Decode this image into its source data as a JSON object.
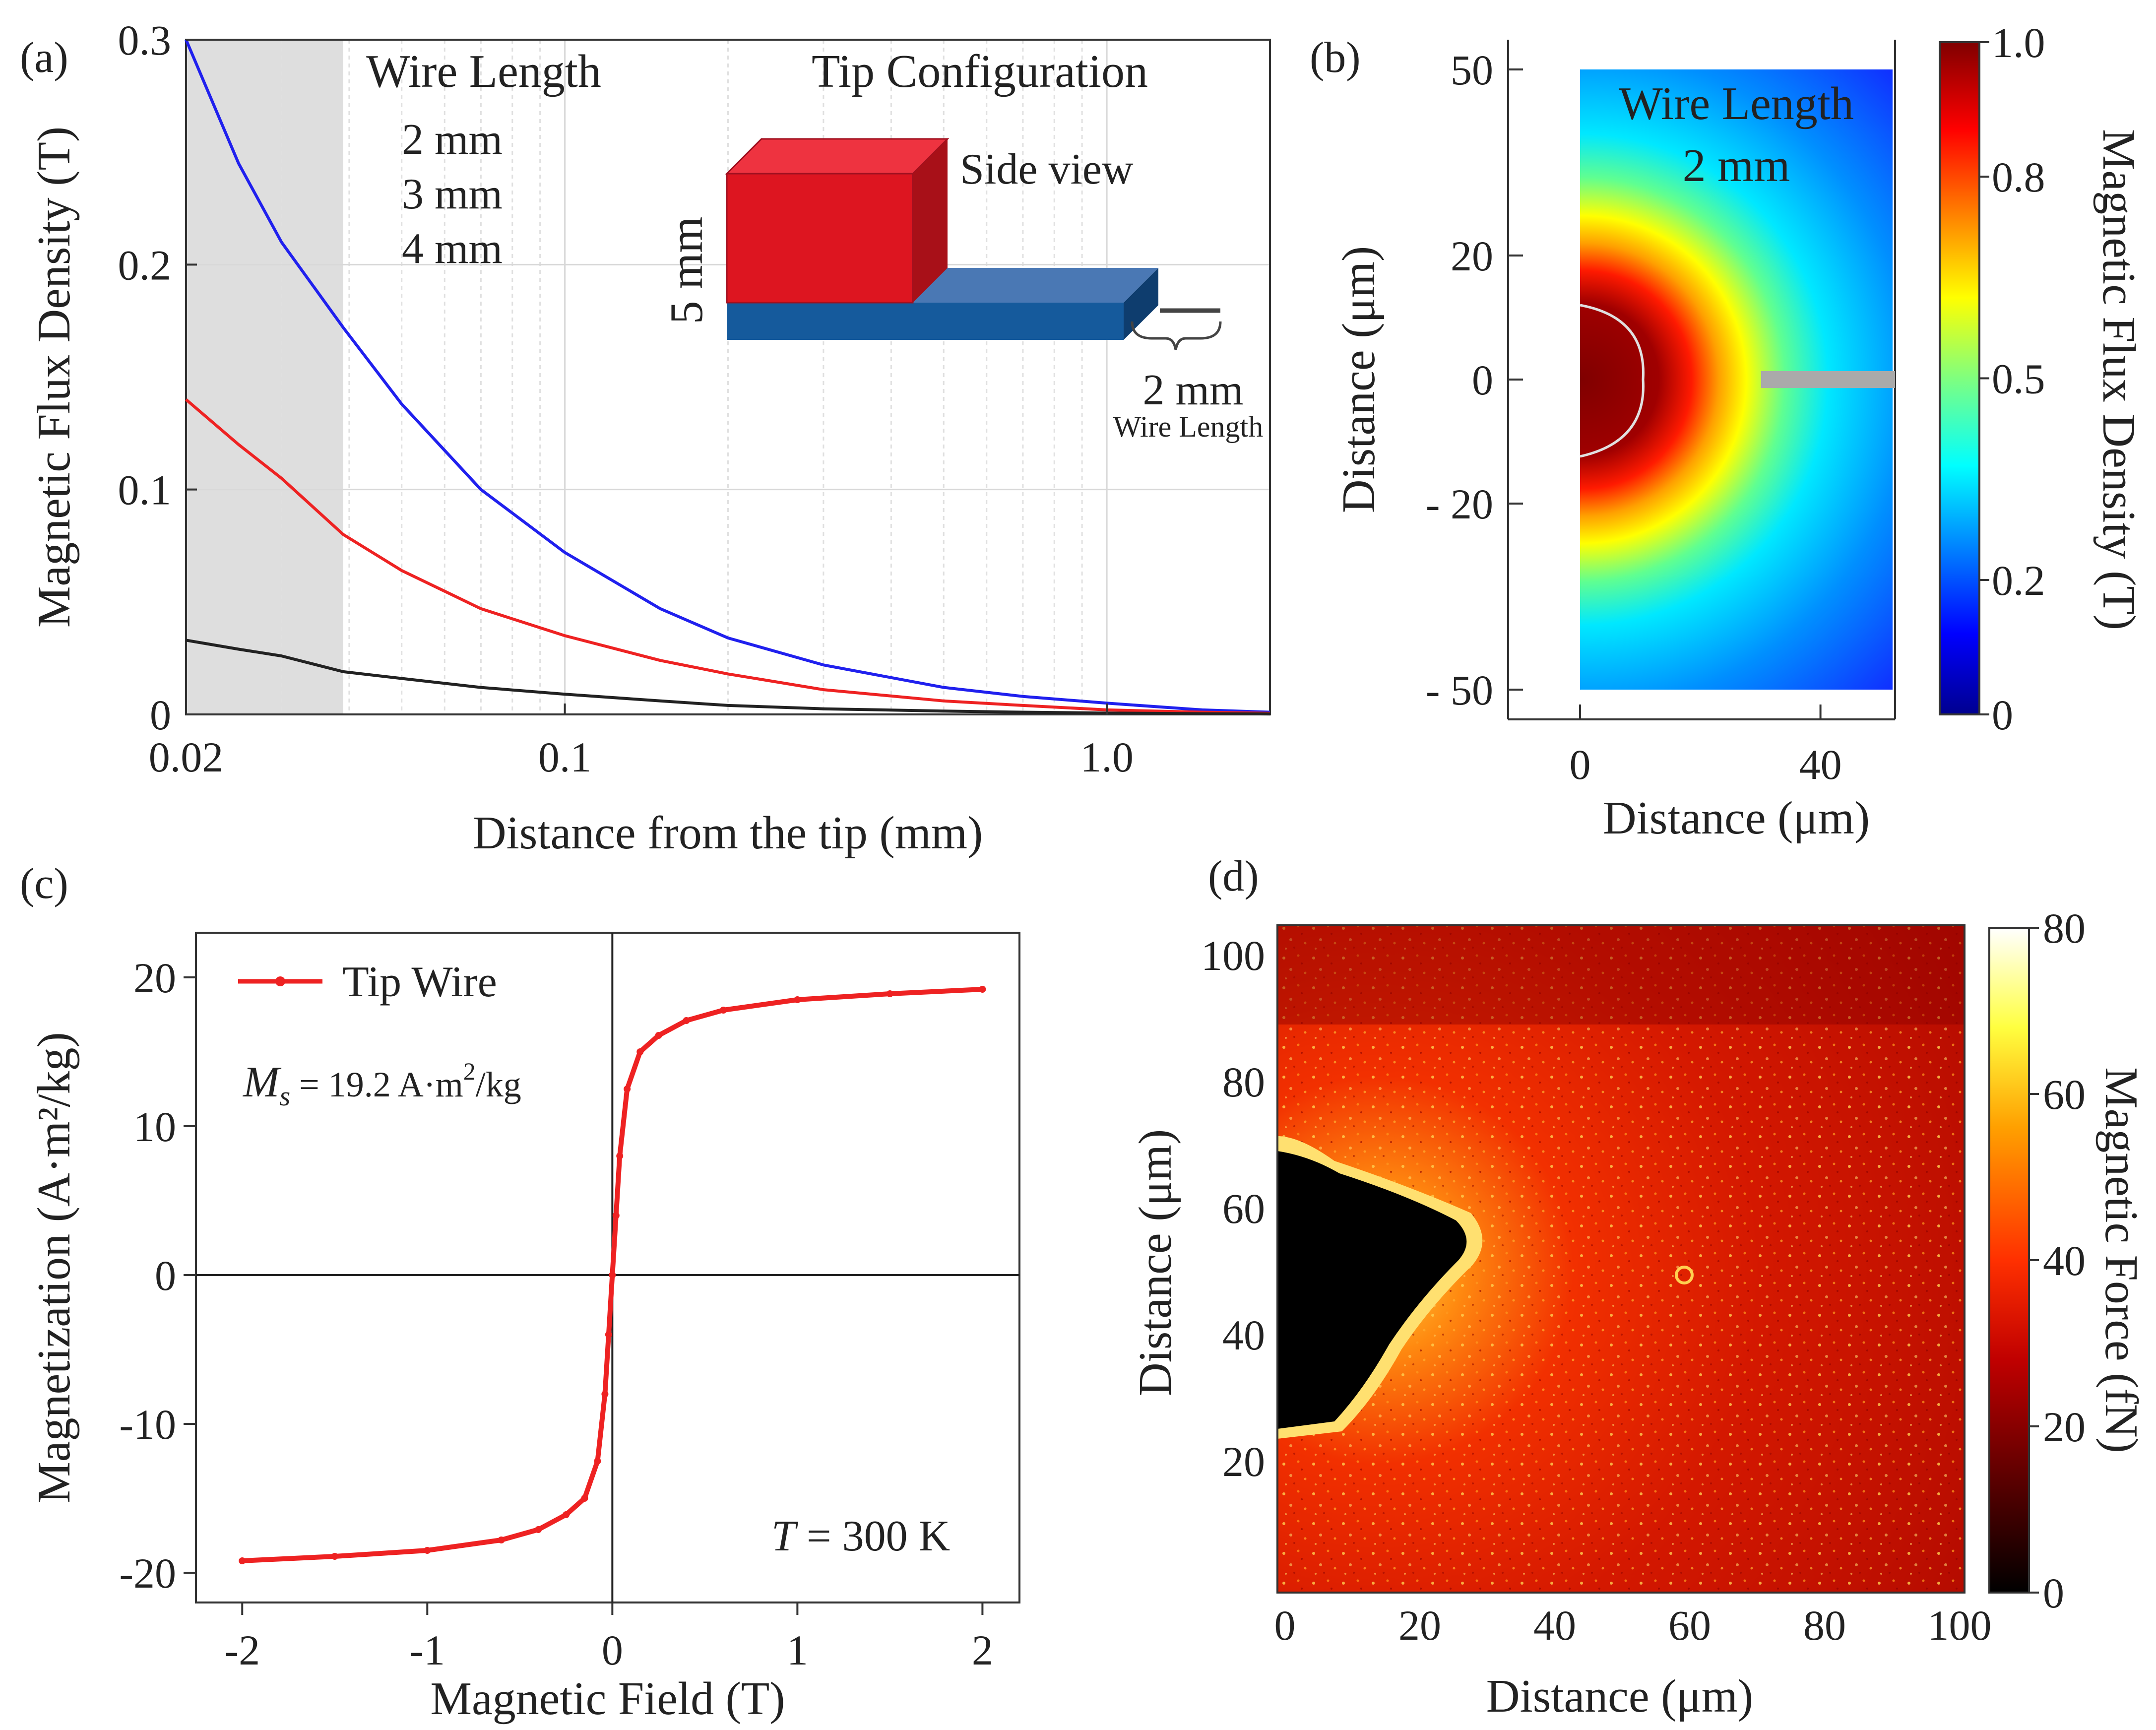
{
  "colors": {
    "blue": "#2020ee",
    "red": "#ee2222",
    "black": "#222222",
    "darkred": "#990000",
    "grey_band": "#dedede",
    "gray_label": "#555555"
  },
  "chart_data": [
    {
      "id": "a",
      "panel_label": "(a)",
      "type": "line",
      "xscale": "log",
      "xlabel": "Distance from the tip (mm)",
      "ylabel": "Magnetic Flux Density (T)",
      "xlim": [
        0.02,
        2.0
      ],
      "ylim": [
        0,
        0.3
      ],
      "xticks": [
        {
          "v": 0.02,
          "label": "0.02"
        },
        {
          "v": 0.1,
          "label": "0.1"
        },
        {
          "v": 1.0,
          "label": "1.0"
        }
      ],
      "yticks": [
        {
          "v": 0,
          "label": "0"
        },
        {
          "v": 0.1,
          "label": "0.1"
        },
        {
          "v": 0.2,
          "label": "0.2"
        },
        {
          "v": 0.3,
          "label": "0.3"
        }
      ],
      "shaded_xrange": [
        0.02,
        0.039
      ],
      "legend_title": "Wire Length",
      "series": [
        {
          "name": "2 mm",
          "color": "#2020ee",
          "x": [
            0.02,
            0.025,
            0.03,
            0.039,
            0.05,
            0.07,
            0.1,
            0.15,
            0.2,
            0.3,
            0.5,
            0.7,
            1.0,
            1.5,
            2.0
          ],
          "y": [
            0.3,
            0.245,
            0.21,
            0.172,
            0.138,
            0.1,
            0.072,
            0.047,
            0.034,
            0.022,
            0.012,
            0.008,
            0.005,
            0.002,
            0.001
          ]
        },
        {
          "name": "3 mm",
          "color": "#ee2222",
          "x": [
            0.02,
            0.025,
            0.03,
            0.039,
            0.05,
            0.07,
            0.1,
            0.15,
            0.2,
            0.3,
            0.5,
            0.7,
            1.0,
            1.5,
            2.0
          ],
          "y": [
            0.14,
            0.12,
            0.105,
            0.08,
            0.064,
            0.047,
            0.035,
            0.024,
            0.018,
            0.011,
            0.006,
            0.004,
            0.002,
            0.001,
            0.0005
          ]
        },
        {
          "name": "4 mm",
          "color": "#222222",
          "x": [
            0.02,
            0.025,
            0.03,
            0.039,
            0.05,
            0.07,
            0.1,
            0.15,
            0.2,
            0.3,
            0.5,
            0.7,
            1.0,
            1.5,
            2.0
          ],
          "y": [
            0.033,
            0.029,
            0.026,
            0.019,
            0.016,
            0.012,
            0.009,
            0.006,
            0.004,
            0.0025,
            0.0015,
            0.001,
            0.0006,
            0.0003,
            0.0002
          ]
        }
      ],
      "inset": {
        "title": "Tip Configuration",
        "side_view": "Side view",
        "height_label": "5 mm",
        "wire_value": "2 mm",
        "wire_caption": "Wire Length"
      }
    },
    {
      "id": "b",
      "panel_label": "(b)",
      "type": "heatmap",
      "xlabel": "Distance (μm)",
      "ylabel": "Distance (μm)",
      "xticks": [
        {
          "v": 0,
          "label": "0"
        },
        {
          "v": 40,
          "label": "40"
        }
      ],
      "yticks": [
        {
          "v": 50,
          "label": "50"
        },
        {
          "v": 20,
          "label": "20"
        },
        {
          "v": 0,
          "label": "0"
        },
        {
          "v": -20,
          "label": "- 20"
        },
        {
          "v": -50,
          "label": "- 50"
        }
      ],
      "annotation": [
        "Wire Length",
        "2 mm"
      ],
      "colorbar": {
        "label": "Magnetic Flux Density  (T)",
        "ticks": [
          {
            "v": 1.0,
            "label": "1.0"
          },
          {
            "v": 0.8,
            "label": "0.8"
          },
          {
            "v": 0.5,
            "label": "0.5"
          },
          {
            "v": 0.2,
            "label": "0.2"
          },
          {
            "v": 0,
            "label": "0"
          }
        ],
        "label_color": "#2020ee"
      }
    },
    {
      "id": "c",
      "panel_label": "(c)",
      "type": "line",
      "xlabel": "Magnetic Field (T)",
      "ylabel": "Magnetization (A·m²/kg)",
      "xlim": [
        -2.25,
        2.2
      ],
      "ylim": [
        -22,
        23
      ],
      "xticks": [
        {
          "v": -2,
          "label": "-2"
        },
        {
          "v": -1,
          "label": "-1"
        },
        {
          "v": 0,
          "label": "0"
        },
        {
          "v": 1,
          "label": "1"
        },
        {
          "v": 2,
          "label": "2"
        }
      ],
      "yticks": [
        {
          "v": 20,
          "label": "20"
        },
        {
          "v": 10,
          "label": "10"
        },
        {
          "v": 0,
          "label": "0"
        },
        {
          "v": -10,
          "label": "-10"
        },
        {
          "v": -20,
          "label": "-20"
        }
      ],
      "series": [
        {
          "name": "Tip Wire",
          "color": "#ee2222",
          "x": [
            -2.0,
            -1.5,
            -1.0,
            -0.6,
            -0.4,
            -0.25,
            -0.15,
            -0.08,
            -0.04,
            -0.02,
            0.0,
            0.02,
            0.04,
            0.08,
            0.15,
            0.25,
            0.4,
            0.6,
            1.0,
            1.5,
            2.0
          ],
          "y": [
            -19.2,
            -18.9,
            -18.5,
            -17.8,
            -17.1,
            -16.1,
            -15.0,
            -12.5,
            -8.0,
            -4.0,
            0.0,
            4.0,
            8.0,
            12.5,
            15.0,
            16.1,
            17.1,
            17.8,
            18.5,
            18.9,
            19.2
          ]
        }
      ],
      "annotations": {
        "ms_sym": "M",
        "ms_sub": "s",
        "ms_value": " = 19.2 A·m",
        "ms_sup": "2",
        "ms_unit": "/kg",
        "temp_sym": "T",
        "temp_value": " = 300 K"
      }
    },
    {
      "id": "d",
      "panel_label": "(d)",
      "type": "heatmap",
      "xlabel": "Distance (μm)",
      "ylabel": "Distance (μm)",
      "xticks": [
        {
          "v": 0,
          "label": "0"
        },
        {
          "v": 20,
          "label": "20"
        },
        {
          "v": 40,
          "label": "40"
        },
        {
          "v": 60,
          "label": "60"
        },
        {
          "v": 80,
          "label": "80"
        },
        {
          "v": 100,
          "label": "100"
        }
      ],
      "yticks": [
        {
          "v": 100,
          "label": "100"
        },
        {
          "v": 80,
          "label": "80"
        },
        {
          "v": 60,
          "label": "60"
        },
        {
          "v": 40,
          "label": "40"
        },
        {
          "v": 20,
          "label": "20"
        }
      ],
      "colorbar": {
        "label": "Magnetic Force (fN)",
        "ticks": [
          {
            "v": 80,
            "label": "80"
          },
          {
            "v": 60,
            "label": "60"
          },
          {
            "v": 40,
            "label": "40"
          },
          {
            "v": 20,
            "label": "20"
          },
          {
            "v": 0,
            "label": "0"
          }
        ],
        "label_color": "#990000"
      }
    }
  ]
}
